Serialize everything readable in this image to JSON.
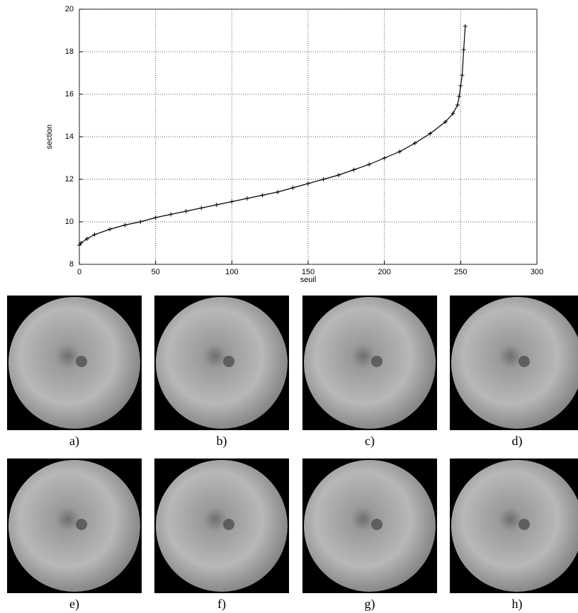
{
  "chart_data": {
    "type": "line",
    "xlabel": "seuil",
    "ylabel": "section",
    "x": [
      0,
      1,
      5,
      10,
      20,
      30,
      40,
      50,
      60,
      70,
      80,
      90,
      100,
      110,
      120,
      130,
      140,
      150,
      160,
      170,
      180,
      190,
      200,
      210,
      220,
      230,
      240,
      245,
      248,
      249,
      250,
      251,
      252,
      253
    ],
    "series": [
      {
        "color": "#000000",
        "values": [
          8.9,
          9.0,
          9.2,
          9.4,
          9.65,
          9.85,
          10.0,
          10.2,
          10.35,
          10.5,
          10.65,
          10.8,
          10.95,
          11.1,
          11.25,
          11.4,
          11.6,
          11.8,
          12.0,
          12.2,
          12.45,
          12.7,
          13.0,
          13.3,
          13.7,
          14.15,
          14.7,
          15.1,
          15.5,
          15.9,
          16.4,
          16.9,
          18.1,
          19.2
        ]
      }
    ],
    "xlim": [
      0,
      300
    ],
    "ylim": [
      8,
      20
    ],
    "xticks": [
      0,
      50,
      100,
      150,
      200,
      250,
      300
    ],
    "yticks": [
      8,
      10,
      12,
      14,
      16,
      18,
      20
    ],
    "grid": true
  },
  "panels": [
    {
      "label": "a)"
    },
    {
      "label": "b)"
    },
    {
      "label": "c)"
    },
    {
      "label": "d)"
    },
    {
      "label": "e)"
    },
    {
      "label": "f)"
    },
    {
      "label": "g)"
    },
    {
      "label": "h)"
    }
  ]
}
